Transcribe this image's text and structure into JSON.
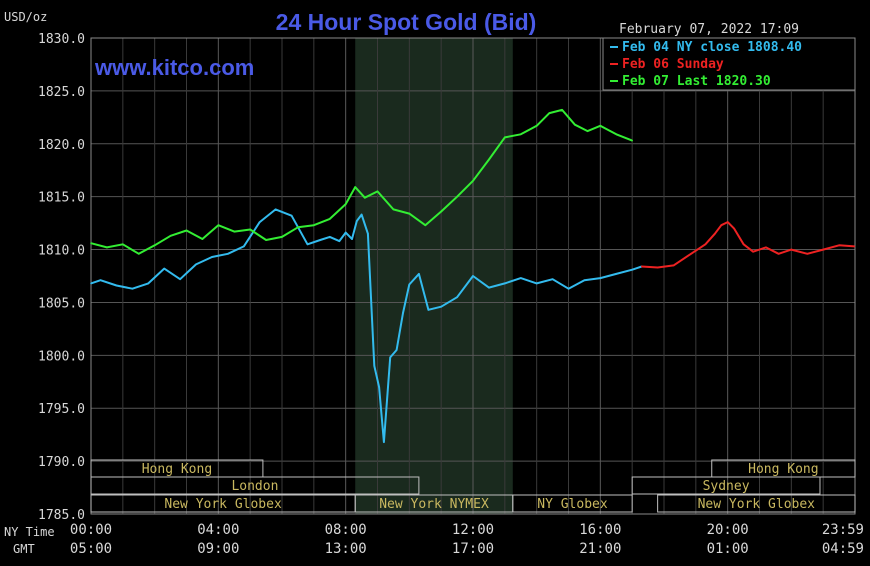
{
  "header": {
    "units": "USD/oz",
    "title": "24 Hour Spot Gold (Bid)",
    "datetime": "February 07, 2022 17:09",
    "watermark": "www.kitco.com"
  },
  "chart_data": {
    "type": "line",
    "title": "24 Hour Spot Gold (Bid)",
    "ylabel": "USD/oz",
    "ylim": [
      1785,
      1830
    ],
    "yticks": [
      1830,
      1825,
      1820,
      1815,
      1810,
      1805,
      1800,
      1795,
      1790,
      1785
    ],
    "ytick_labels": [
      "1830.0",
      "1825.0",
      "1820.0",
      "1815.0",
      "1810.0",
      "1805.0",
      "1800.0",
      "1795.0",
      "1790.0",
      "1785.0"
    ],
    "xlim": [
      0,
      24
    ],
    "xticks": [
      0,
      4,
      8,
      12,
      16,
      20,
      23.98
    ],
    "xtick_labels_ny": [
      "00:00",
      "04:00",
      "08:00",
      "12:00",
      "16:00",
      "20:00",
      "23:59"
    ],
    "xtick_labels_gmt": [
      "05:00",
      "09:00",
      "13:00",
      "17:00",
      "21:00",
      "01:00",
      "04:59"
    ],
    "xaxis_row_labels": [
      "NY Time",
      "GMT"
    ],
    "grid": true,
    "legend_position": "top-right",
    "shaded_region": [
      8.3,
      13.25
    ],
    "series": [
      {
        "name": "Feb 04 NY close 1808.40",
        "color": "#33bbee",
        "x": [
          0,
          0.3,
          0.8,
          1.3,
          1.8,
          2.3,
          2.8,
          3.3,
          3.8,
          4.3,
          4.8,
          5.3,
          5.8,
          6.3,
          6.8,
          7.2,
          7.5,
          7.8,
          8.0,
          8.2,
          8.35,
          8.5,
          8.7,
          8.9,
          9.05,
          9.2,
          9.4,
          9.6,
          9.8,
          10.0,
          10.3,
          10.6,
          11.0,
          11.5,
          12.0,
          12.5,
          13.0,
          13.5,
          14.0,
          14.5,
          15.0,
          15.5,
          16.0,
          16.5,
          17.0,
          17.3
        ],
        "y": [
          1806.8,
          1807.1,
          1806.6,
          1806.3,
          1806.8,
          1808.2,
          1807.2,
          1808.6,
          1809.3,
          1809.6,
          1810.3,
          1812.6,
          1813.8,
          1813.2,
          1810.5,
          1810.9,
          1811.2,
          1810.8,
          1811.6,
          1811.0,
          1812.7,
          1813.3,
          1811.5,
          1799.0,
          1797.0,
          1791.8,
          1799.8,
          1800.5,
          1804.0,
          1806.7,
          1807.7,
          1804.3,
          1804.6,
          1805.5,
          1807.5,
          1806.4,
          1806.8,
          1807.3,
          1806.8,
          1807.2,
          1806.3,
          1807.1,
          1807.3,
          1807.7,
          1808.1,
          1808.4
        ]
      },
      {
        "name": "Feb 06 Sunday",
        "color": "#ee2222",
        "x": [
          17.3,
          17.8,
          18.3,
          18.8,
          19.3,
          19.6,
          19.8,
          20.0,
          20.2,
          20.5,
          20.8,
          21.2,
          21.6,
          22.0,
          22.5,
          23.0,
          23.5,
          23.98
        ],
        "y": [
          1808.4,
          1808.3,
          1808.5,
          1809.5,
          1810.5,
          1811.5,
          1812.3,
          1812.6,
          1812.0,
          1810.5,
          1809.8,
          1810.2,
          1809.6,
          1810.0,
          1809.6,
          1810.0,
          1810.4,
          1810.3
        ]
      },
      {
        "name": "Feb 07 Last 1820.30",
        "color": "#33ee33",
        "x": [
          0,
          0.5,
          1.0,
          1.5,
          2.0,
          2.5,
          3.0,
          3.5,
          4.0,
          4.5,
          5.0,
          5.5,
          6.0,
          6.5,
          7.0,
          7.5,
          8.0,
          8.3,
          8.6,
          9.0,
          9.5,
          10.0,
          10.5,
          11.0,
          11.5,
          12.0,
          12.5,
          13.0,
          13.5,
          14.0,
          14.4,
          14.8,
          15.2,
          15.6,
          16.0,
          16.5,
          17.0
        ],
        "y": [
          1810.6,
          1810.2,
          1810.5,
          1809.6,
          1810.4,
          1811.3,
          1811.8,
          1811.0,
          1812.3,
          1811.7,
          1811.9,
          1810.9,
          1811.2,
          1812.1,
          1812.3,
          1812.9,
          1814.3,
          1815.9,
          1814.9,
          1815.5,
          1813.8,
          1813.4,
          1812.3,
          1813.6,
          1815.0,
          1816.5,
          1818.5,
          1820.6,
          1820.9,
          1821.7,
          1822.9,
          1823.2,
          1821.8,
          1821.2,
          1821.7,
          1820.9,
          1820.3
        ]
      }
    ],
    "session_rows": [
      [
        {
          "label": "Hong Kong",
          "start": 0,
          "end": 5.4
        },
        {
          "label": "Hong Kong",
          "start": 19.5,
          "end": 24
        }
      ],
      [
        {
          "label": "London",
          "start": 0,
          "end": 10.3
        },
        {
          "label": "Sydney",
          "start": 17.0,
          "end": 22.9
        }
      ],
      [
        {
          "label": "New York Globex",
          "start": 0,
          "end": 8.3
        },
        {
          "label": "New York NYMEX",
          "start": 8.3,
          "end": 13.25
        },
        {
          "label": "NY Globex",
          "start": 13.25,
          "end": 17.0
        },
        {
          "label": "New York Globex",
          "start": 17.8,
          "end": 24
        }
      ]
    ]
  }
}
